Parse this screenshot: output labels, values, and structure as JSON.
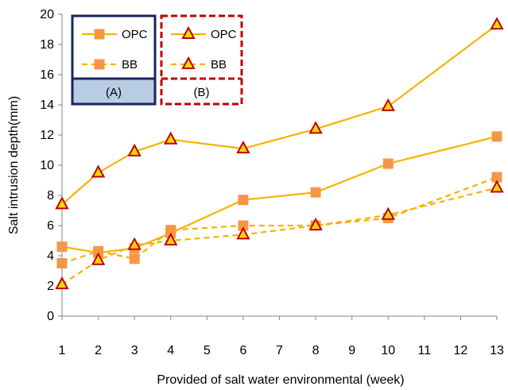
{
  "chart_data": {
    "type": "line",
    "x_categories": [
      "1",
      "2",
      "3",
      "4",
      "5",
      "6",
      "7",
      "8",
      "9",
      "10",
      "11",
      "12",
      "13"
    ],
    "xlabel": "Provided of salt water environmental (week)",
    "ylabel": "Salt intrusion depth(mm)",
    "ylim": [
      0,
      20
    ],
    "yticks": [
      "0",
      "2",
      "4",
      "6",
      "8",
      "10",
      "12",
      "14",
      "16",
      "18",
      "20"
    ],
    "grid": false,
    "legend_position": "top-left",
    "series": [
      {
        "name": "OPC",
        "group": "A",
        "marker": "square",
        "line": "solid",
        "color": "#f4b400",
        "marker_fill": "#f79646",
        "x": [
          1,
          2,
          3,
          4,
          6,
          8,
          10,
          13
        ],
        "y": [
          4.6,
          4.2,
          4.5,
          5.5,
          7.7,
          8.2,
          10.1,
          11.9
        ]
      },
      {
        "name": "BB",
        "group": "A",
        "marker": "square",
        "line": "dashed",
        "color": "#f4b400",
        "marker_fill": "#f79646",
        "x": [
          1,
          2,
          3,
          4,
          6,
          8,
          10,
          13
        ],
        "y": [
          3.5,
          4.3,
          3.8,
          5.7,
          6.0,
          6.0,
          6.5,
          9.2
        ]
      },
      {
        "name": "OPC",
        "group": "B",
        "marker": "triangle",
        "line": "solid",
        "color": "#f4b400",
        "marker_fill": "#ffd700",
        "marker_edge": "#c00000",
        "x": [
          1,
          2,
          3,
          4,
          6,
          8,
          10,
          13
        ],
        "y": [
          7.4,
          9.5,
          10.9,
          11.7,
          11.1,
          12.4,
          13.9,
          19.3
        ]
      },
      {
        "name": "BB",
        "group": "B",
        "marker": "triangle",
        "line": "dashed",
        "color": "#f4b400",
        "marker_fill": "#ffd700",
        "marker_edge": "#c00000",
        "x": [
          1,
          2,
          3,
          4,
          6,
          8,
          10,
          13
        ],
        "y": [
          2.1,
          3.7,
          4.7,
          5.0,
          5.4,
          6.0,
          6.7,
          8.5
        ]
      }
    ],
    "legend": {
      "group_a_label": "(A)",
      "group_b_label": "(B)",
      "group_a_frame_color": "#17255f",
      "group_a_fill": "#b8cce4",
      "group_b_frame_color": "#c00000"
    }
  }
}
